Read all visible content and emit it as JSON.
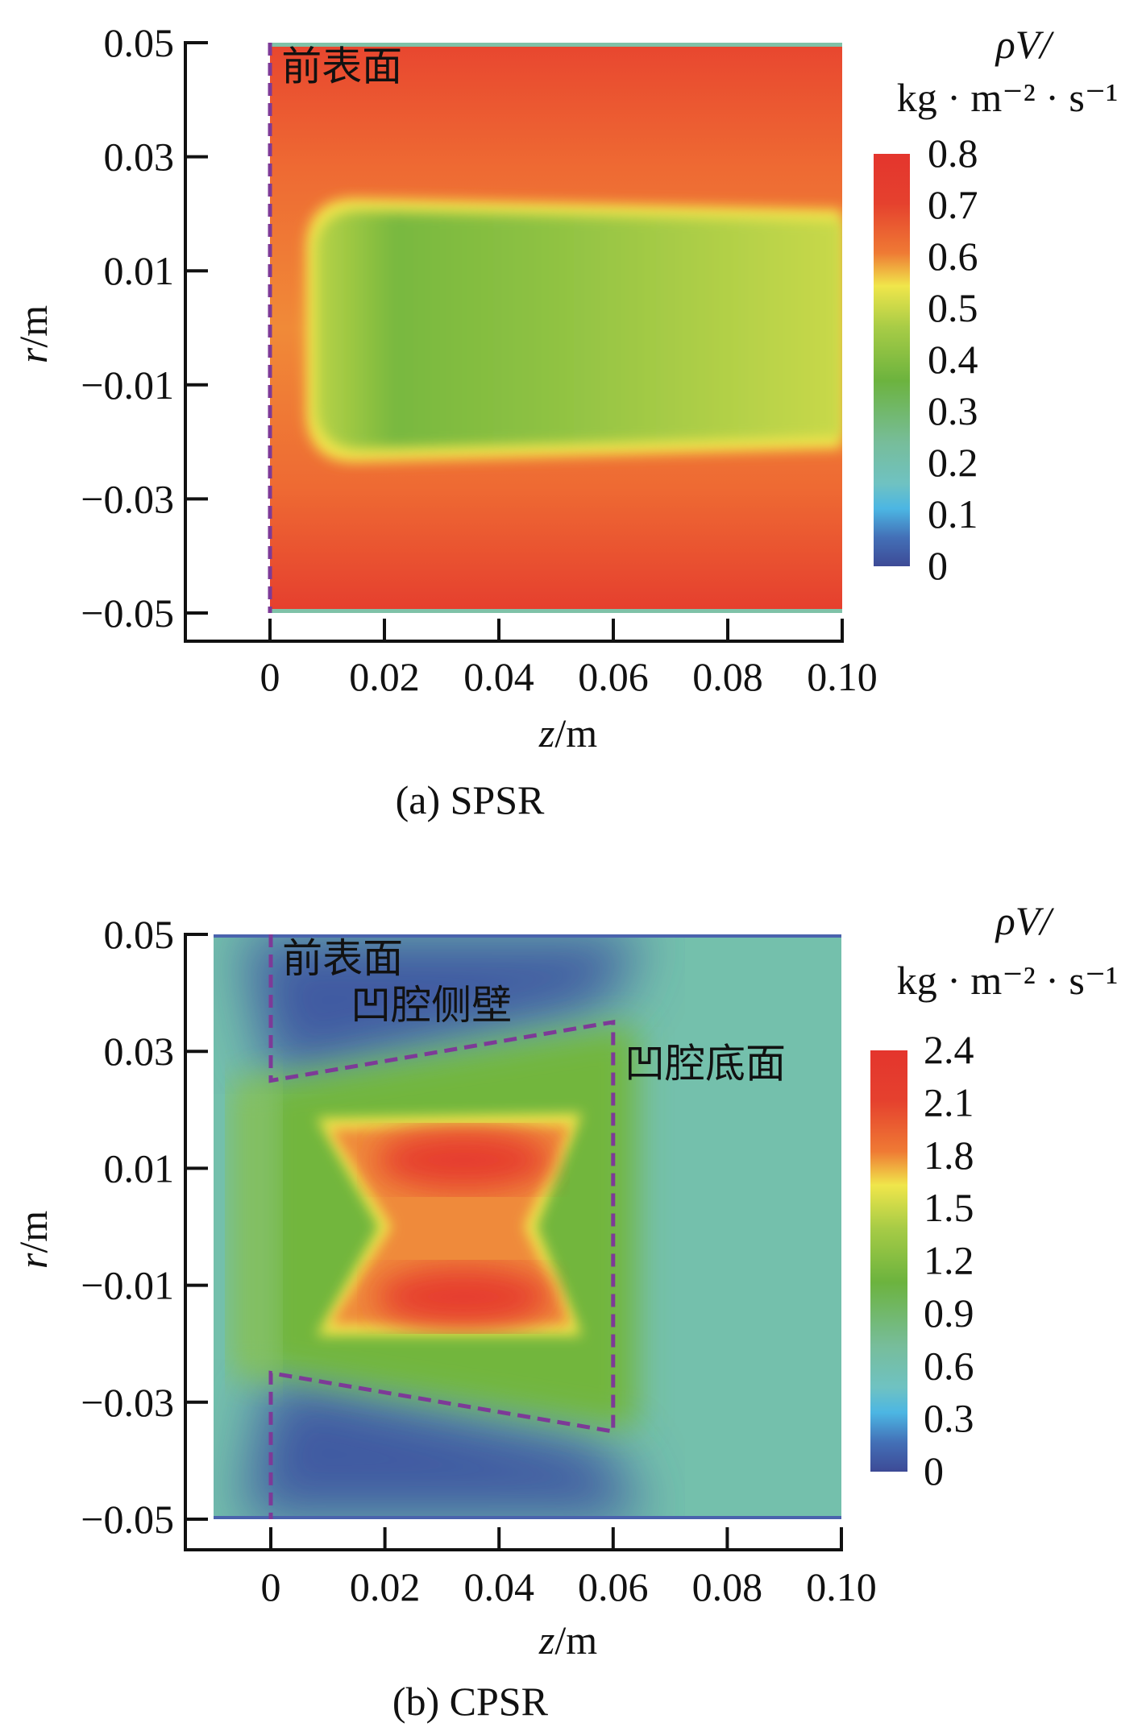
{
  "chart_data": [
    {
      "type": "heatmap",
      "caption": "(a) SPSR",
      "xlabel_var": "z",
      "xlabel_unit": "/m",
      "ylabel_var": "r",
      "ylabel_unit": "/m",
      "xlim": [
        0,
        0.1
      ],
      "ylim": [
        -0.05,
        0.05
      ],
      "xticks": [
        "0",
        "0.02",
        "0.04",
        "0.06",
        "0.08",
        "0.10"
      ],
      "xtick_values": [
        0,
        0.02,
        0.04,
        0.06,
        0.08,
        0.1
      ],
      "yticks": [
        "0.05",
        "0.03",
        "0.01",
        "−0.01",
        "−0.03",
        "−0.05"
      ],
      "ytick_values": [
        0.05,
        0.03,
        0.01,
        -0.01,
        -0.03,
        -0.05
      ],
      "colorbar": {
        "title_var": "ρV/",
        "unit": "kg · m⁻² · s⁻¹",
        "ticks": [
          "0.8",
          "0.7",
          "0.6",
          "0.5",
          "0.4",
          "0.3",
          "0.2",
          "0.1",
          "0"
        ],
        "range": [
          0,
          0.8
        ]
      },
      "annotations": [
        {
          "text": "前表面",
          "z": 0.002,
          "r": 0.046
        }
      ],
      "outline": [
        [
          0,
          0.05
        ],
        [
          0,
          -0.05
        ]
      ],
      "field_summary": {
        "core_min": 0.4,
        "outer_max": 0.75
      }
    },
    {
      "type": "heatmap",
      "caption": "(b) CPSR",
      "xlabel_var": "z",
      "xlabel_unit": "/m",
      "ylabel_var": "r",
      "ylabel_unit": "/m",
      "xlim": [
        -0.01,
        0.1
      ],
      "ylim": [
        -0.05,
        0.05
      ],
      "xticks": [
        "0",
        "0.02",
        "0.04",
        "0.06",
        "0.08",
        "0.10"
      ],
      "xtick_values": [
        0,
        0.02,
        0.04,
        0.06,
        0.08,
        0.1
      ],
      "yticks": [
        "0.05",
        "0.03",
        "0.01",
        "−0.01",
        "−0.03",
        "−0.05"
      ],
      "ytick_values": [
        0.05,
        0.03,
        0.01,
        -0.01,
        -0.03,
        -0.05
      ],
      "colorbar": {
        "title_var": "ρV/",
        "unit": "kg · m⁻² · s⁻¹",
        "ticks": [
          "2.4",
          "2.1",
          "1.8",
          "1.5",
          "1.2",
          "0.9",
          "0.6",
          "0.3",
          "0"
        ],
        "range": [
          0,
          2.4
        ]
      },
      "annotations": [
        {
          "text": "前表面",
          "z": 0.002,
          "r": 0.046
        },
        {
          "text": "凹腔侧壁",
          "z": 0.014,
          "r": 0.038
        },
        {
          "text": "凹腔底面",
          "z": 0.062,
          "r": 0.028
        }
      ],
      "outline": [
        [
          0,
          0.05
        ],
        [
          0,
          0.025
        ],
        [
          0.06,
          0.035
        ],
        [
          0.06,
          -0.035
        ],
        [
          0,
          -0.025
        ],
        [
          0,
          -0.05
        ]
      ],
      "field_summary": {
        "core_max": 2.3,
        "freestream": 0.7,
        "min": 0.1
      }
    }
  ]
}
